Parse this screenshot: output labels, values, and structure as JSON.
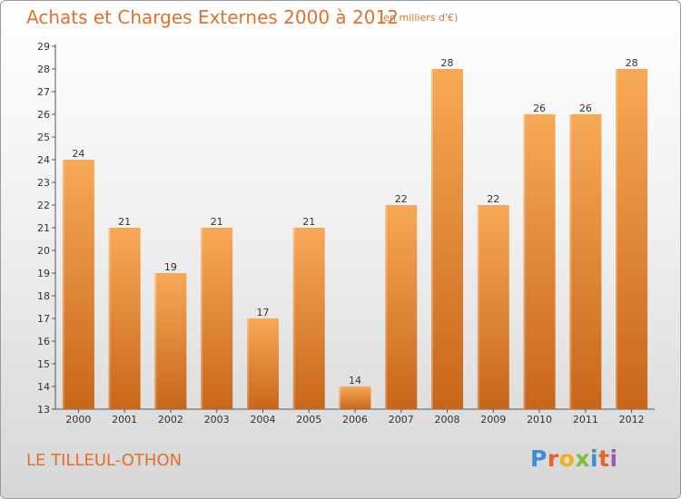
{
  "header": {
    "title": "Achats et Charges Externes 2000 à 2012",
    "subtitle": "(en milliers d'€)"
  },
  "footer": {
    "commune": "LE TILLEUL-OTHON",
    "logo_letters": [
      "P",
      "r",
      "o",
      "x",
      "i",
      "t",
      "i"
    ],
    "logo_colors": [
      "#3a8fd6",
      "#e8622a",
      "#f2b01e",
      "#7bbf3a",
      "#3a8fd6",
      "#e8622a",
      "#9b59b6"
    ]
  },
  "colors": {
    "bar_top": "#f7a957",
    "bar_bottom": "#c8661a",
    "accent": "#e0702a"
  },
  "chart_data": {
    "type": "bar",
    "categories": [
      "2000",
      "2001",
      "2002",
      "2003",
      "2004",
      "2005",
      "2006",
      "2007",
      "2008",
      "2009",
      "2010",
      "2011",
      "2012"
    ],
    "values": [
      24,
      21,
      19,
      21,
      17,
      21,
      14,
      22,
      28,
      22,
      26,
      26,
      28
    ],
    "title": "Achats et Charges Externes 2000 à 2012",
    "xlabel": "",
    "ylabel": "",
    "ylim": [
      13,
      29
    ],
    "yticks": [
      13,
      14,
      15,
      16,
      17,
      18,
      19,
      20,
      21,
      22,
      23,
      24,
      25,
      26,
      27,
      28,
      29
    ],
    "grid": false,
    "data_labels": true
  }
}
